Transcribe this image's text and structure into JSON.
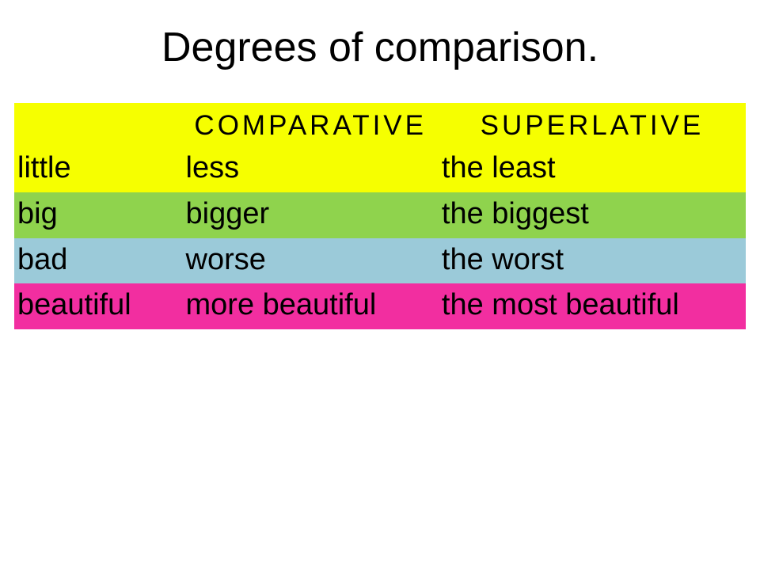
{
  "title": "Degrees of comparison.",
  "colors": {
    "yellow": "#f6ff00",
    "green": "#8fd34d",
    "blue": "#9bcad9",
    "pink": "#f22ea0",
    "text": "#000000",
    "background": "#ffffff"
  },
  "fontsizes": {
    "title": 52,
    "header": 35,
    "cell": 38
  },
  "table": {
    "headers": {
      "col1": "",
      "col2": "COMPARATIVE",
      "col3": "SUPERLATIVE"
    },
    "rows": [
      {
        "bg": "#f6ff00",
        "positive": "little",
        "comparative": "less",
        "superlative": "the  least"
      },
      {
        "bg": "#8fd34d",
        "positive": "big",
        "comparative": "bigger",
        "superlative": "the biggest"
      },
      {
        "bg": "#9bcad9",
        "positive": "bad",
        "comparative": "worse",
        "superlative": "the worst"
      },
      {
        "bg": "#f22ea0",
        "positive": "beautiful",
        "comparative": "more beautiful",
        "superlative": "the most beautiful"
      }
    ]
  }
}
